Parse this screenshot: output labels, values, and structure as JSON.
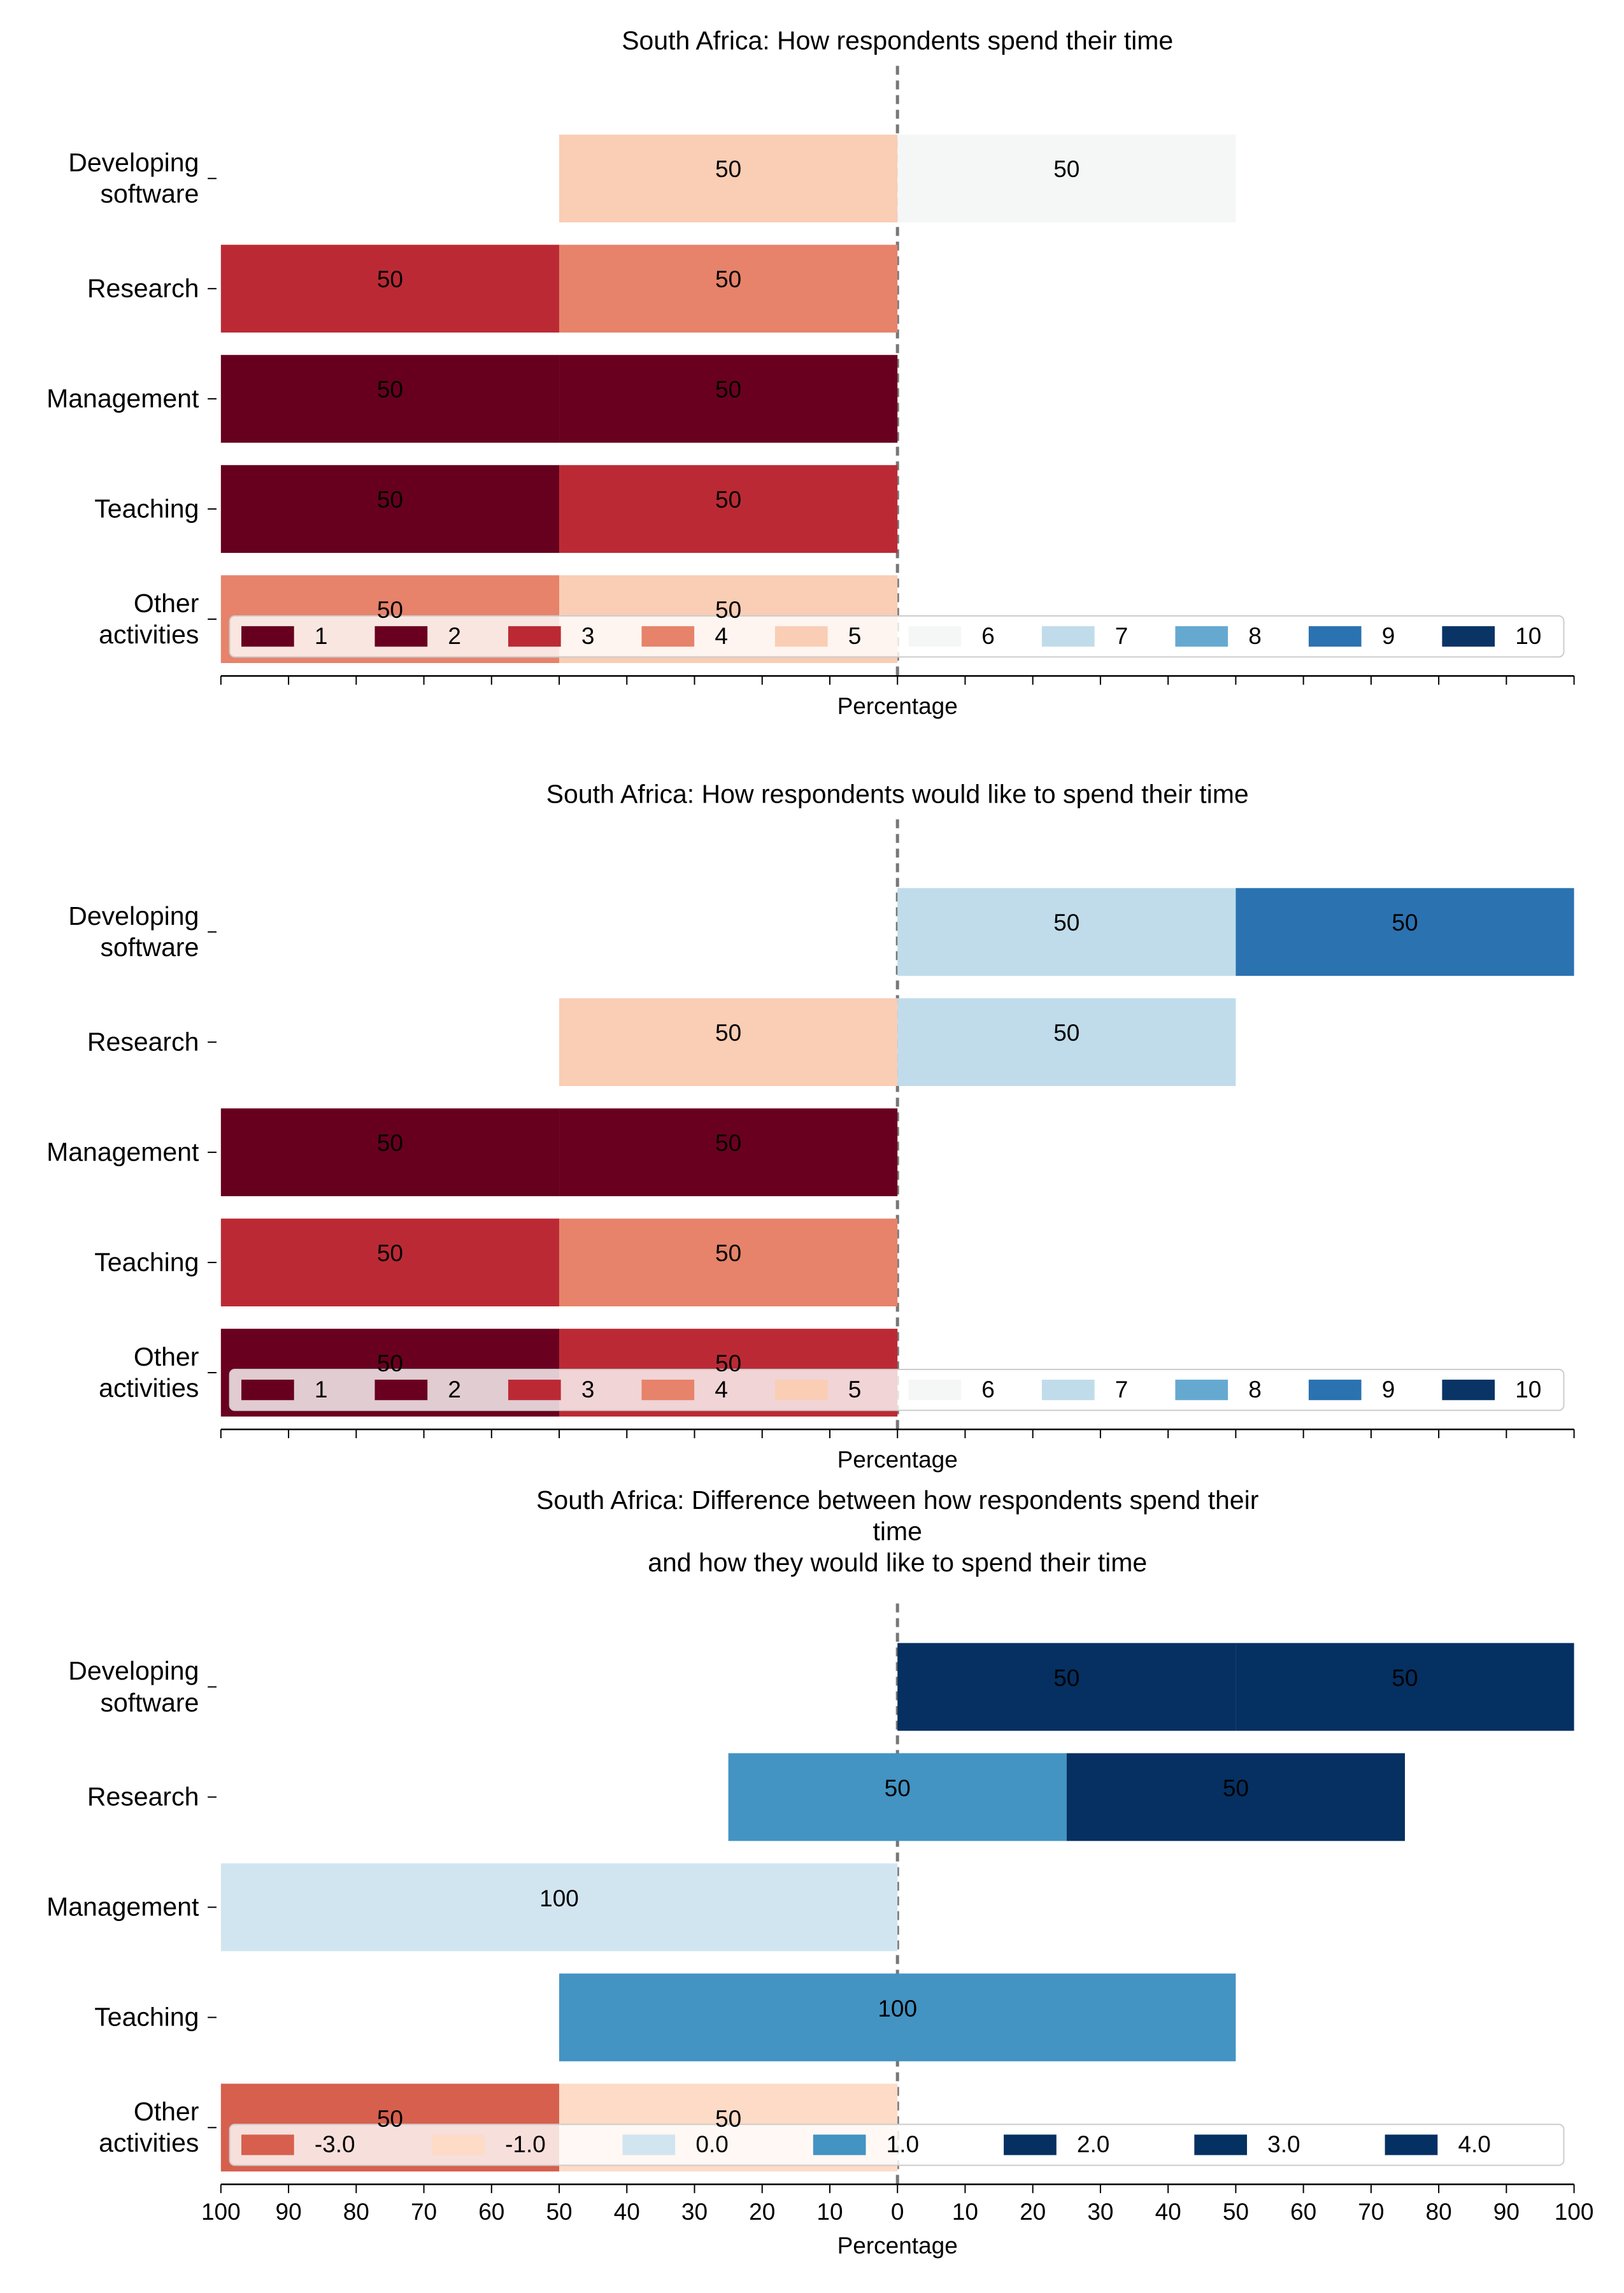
{
  "chart_data": [
    {
      "type": "diverging_bar",
      "title": "South Africa: How respondents spend their time",
      "xlabel": "Percentage",
      "categories": [
        "Developing\nsoftware",
        "Research",
        "Management",
        "Teaching",
        "Other\nactivities"
      ],
      "series": [
        {
          "name": "1",
          "color": "#67001f",
          "values": [
            0,
            0,
            50,
            50,
            0
          ]
        },
        {
          "name": "2",
          "color": "#6a0020",
          "values": [
            0,
            0,
            50,
            0,
            0
          ]
        },
        {
          "name": "3",
          "color": "#bb2a34",
          "values": [
            0,
            50,
            0,
            50,
            0
          ]
        },
        {
          "name": "4",
          "color": "#e6836a",
          "values": [
            0,
            50,
            0,
            0,
            50
          ]
        },
        {
          "name": "5",
          "color": "#facdb5",
          "values": [
            50,
            0,
            0,
            0,
            50
          ]
        },
        {
          "name": "6",
          "color": "#f5f6f6",
          "values": [
            50,
            0,
            0,
            0,
            0
          ]
        },
        {
          "name": "7",
          "color": "#c0dcea",
          "values": [
            0,
            0,
            0,
            0,
            0
          ]
        },
        {
          "name": "8",
          "color": "#65a9d1",
          "values": [
            0,
            0,
            0,
            0,
            0
          ]
        },
        {
          "name": "9",
          "color": "#2b72b1",
          "values": [
            0,
            0,
            0,
            0,
            0
          ]
        },
        {
          "name": "10",
          "color": "#0a3466",
          "values": [
            0,
            0,
            0,
            0,
            0
          ]
        }
      ],
      "xlim": [
        -100,
        100
      ],
      "xticks": [
        -100,
        -90,
        -80,
        -70,
        -60,
        -50,
        -40,
        -30,
        -20,
        -10,
        0,
        10,
        20,
        30,
        40,
        50,
        60,
        70,
        80,
        90,
        100
      ],
      "xtick_labels": false,
      "legend": "lower center"
    },
    {
      "type": "diverging_bar",
      "title": "South Africa: How respondents would like to spend their time",
      "xlabel": "Percentage",
      "categories": [
        "Developing\nsoftware",
        "Research",
        "Management",
        "Teaching",
        "Other\nactivities"
      ],
      "series": [
        {
          "name": "1",
          "color": "#67001f",
          "values": [
            0,
            0,
            50,
            0,
            0
          ]
        },
        {
          "name": "2",
          "color": "#6a0020",
          "values": [
            0,
            0,
            50,
            0,
            50
          ]
        },
        {
          "name": "3",
          "color": "#bb2a34",
          "values": [
            0,
            0,
            0,
            50,
            50
          ]
        },
        {
          "name": "4",
          "color": "#e6836a",
          "values": [
            0,
            0,
            0,
            50,
            0
          ]
        },
        {
          "name": "5",
          "color": "#facdb5",
          "values": [
            0,
            50,
            0,
            0,
            0
          ]
        },
        {
          "name": "6",
          "color": "#f5f6f6",
          "values": [
            0,
            0,
            0,
            0,
            0
          ]
        },
        {
          "name": "7",
          "color": "#c0dcea",
          "values": [
            50,
            50,
            0,
            0,
            0
          ]
        },
        {
          "name": "8",
          "color": "#65a9d1",
          "values": [
            0,
            0,
            0,
            0,
            0
          ]
        },
        {
          "name": "9",
          "color": "#2b72b1",
          "values": [
            50,
            0,
            0,
            0,
            0
          ]
        },
        {
          "name": "10",
          "color": "#0a3466",
          "values": [
            0,
            0,
            0,
            0,
            0
          ]
        }
      ],
      "xlim": [
        -100,
        100
      ],
      "xticks": [
        -100,
        -90,
        -80,
        -70,
        -60,
        -50,
        -40,
        -30,
        -20,
        -10,
        0,
        10,
        20,
        30,
        40,
        50,
        60,
        70,
        80,
        90,
        100
      ],
      "xtick_labels": false,
      "legend": "lower center"
    },
    {
      "type": "diverging_bar",
      "title": "South Africa: Difference between how respondents spend their time\nand how they would like to spend their time",
      "xlabel": "Percentage",
      "categories": [
        "Developing\nsoftware",
        "Research",
        "Management",
        "Teaching",
        "Other\nactivities"
      ],
      "series": [
        {
          "name": "-3.0",
          "color": "#d6604d",
          "values": [
            0,
            0,
            0,
            0,
            50
          ]
        },
        {
          "name": "-1.0",
          "color": "#fddbc7",
          "values": [
            0,
            0,
            0,
            0,
            50
          ]
        },
        {
          "name": "0.0",
          "color": "#d1e5f0",
          "values": [
            0,
            0,
            100,
            0,
            0
          ]
        },
        {
          "name": "1.0",
          "color": "#4393c3",
          "values": [
            0,
            50,
            0,
            100,
            0
          ]
        },
        {
          "name": "2.0",
          "color": "#053061",
          "values": [
            50,
            50,
            0,
            0,
            0
          ]
        },
        {
          "name": "3.0",
          "color": "#053062",
          "values": [
            50,
            0,
            0,
            0,
            0
          ]
        },
        {
          "name": "4.0",
          "color": "#053063",
          "values": [
            0,
            0,
            0,
            0,
            0
          ]
        }
      ],
      "xlim": [
        -100,
        100
      ],
      "xticks": [
        {
          "value": -100,
          "label": "100"
        },
        {
          "value": -90,
          "label": "90"
        },
        {
          "value": -80,
          "label": "80"
        },
        {
          "value": -70,
          "label": "70"
        },
        {
          "value": -60,
          "label": "60"
        },
        {
          "value": -50,
          "label": "50"
        },
        {
          "value": -40,
          "label": "40"
        },
        {
          "value": -30,
          "label": "30"
        },
        {
          "value": -20,
          "label": "20"
        },
        {
          "value": -10,
          "label": "10"
        },
        0,
        10,
        20,
        30,
        40,
        50,
        60,
        70,
        80,
        90,
        100
      ],
      "xtick_labels": true,
      "legend": "lower center"
    }
  ]
}
